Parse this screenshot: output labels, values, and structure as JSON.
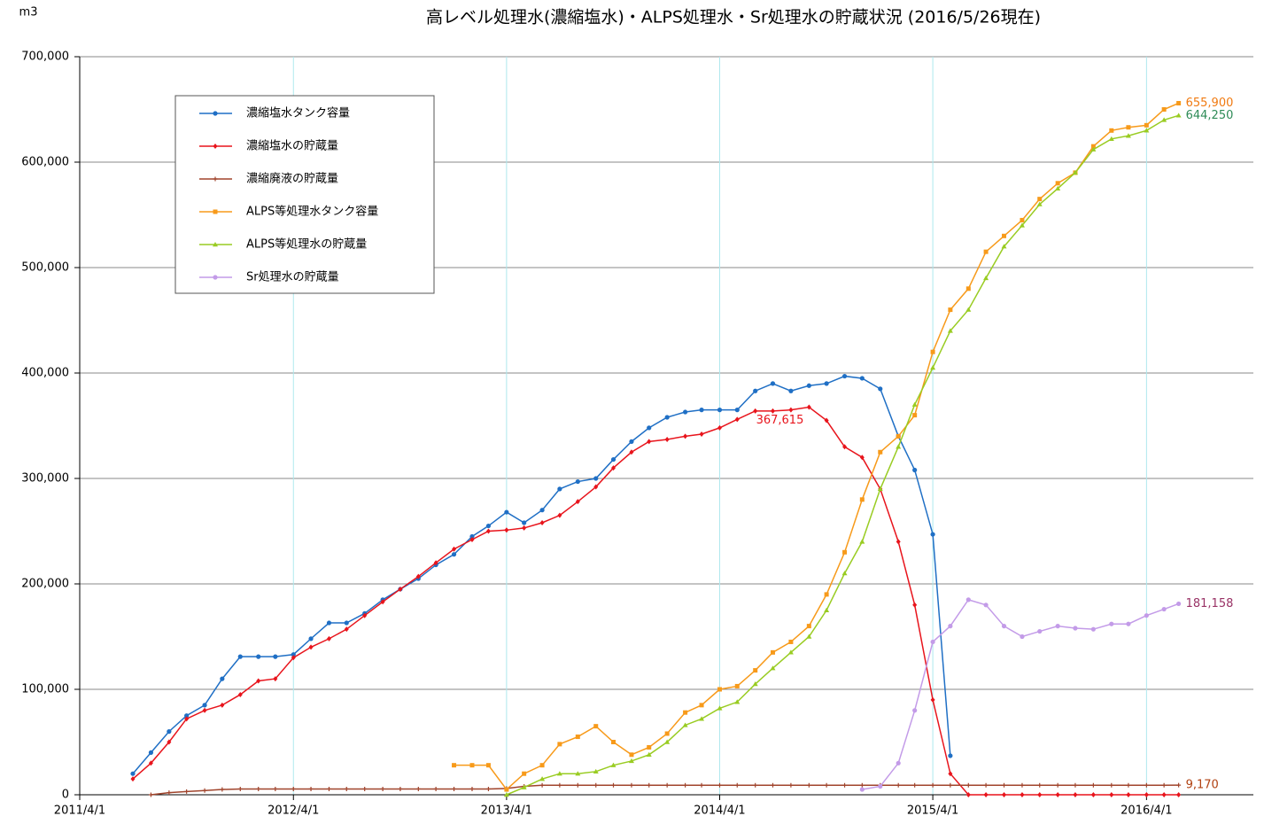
{
  "chart_data": {
    "type": "line",
    "title": "高レベル処理水(濃縮塩水)・ALPS処理水・Sr処理水の貯蔵状況 (2016/5/26現在)",
    "y_unit_label": "m3",
    "x": [
      "2011/7/1",
      "2011/8/1",
      "2011/9/1",
      "2011/10/1",
      "2011/11/1",
      "2011/12/1",
      "2012/1/1",
      "2012/2/1",
      "2012/3/1",
      "2012/4/1",
      "2012/5/1",
      "2012/6/1",
      "2012/7/1",
      "2012/8/1",
      "2012/9/1",
      "2012/10/1",
      "2012/11/1",
      "2012/12/1",
      "2013/1/1",
      "2013/2/1",
      "2013/3/1",
      "2013/4/1",
      "2013/5/1",
      "2013/6/1",
      "2013/7/1",
      "2013/8/1",
      "2013/9/1",
      "2013/10/1",
      "2013/11/1",
      "2013/12/1",
      "2014/1/1",
      "2014/2/1",
      "2014/3/1",
      "2014/4/1",
      "2014/5/1",
      "2014/6/1",
      "2014/7/1",
      "2014/8/1",
      "2014/9/1",
      "2014/10/1",
      "2014/11/1",
      "2014/12/1",
      "2015/1/1",
      "2015/2/1",
      "2015/3/1",
      "2015/4/1",
      "2015/5/1",
      "2015/6/1",
      "2015/7/1",
      "2015/8/1",
      "2015/9/1",
      "2015/10/1",
      "2015/11/1",
      "2015/12/1",
      "2016/1/1",
      "2016/2/1",
      "2016/3/1",
      "2016/4/1",
      "2016/5/1",
      "2016/5/26"
    ],
    "xlim": [
      "2011/4/1",
      "2016/10/1"
    ],
    "xticks": [
      "2011/4/1",
      "2012/4/1",
      "2013/4/1",
      "2014/4/1",
      "2015/4/1",
      "2016/4/1"
    ],
    "ylim": [
      0,
      700000
    ],
    "yticks": [
      0,
      {
        "value": 100000,
        "label": "100,000"
      },
      {
        "value": 200000,
        "label": "200,000"
      },
      {
        "value": 300000,
        "label": "300,000"
      },
      {
        "value": 400000,
        "label": "400,000"
      },
      {
        "value": 500000,
        "label": "500,000"
      },
      {
        "value": 600000,
        "label": "600,000"
      },
      {
        "value": 700000,
        "label": "700,000"
      }
    ],
    "grid": true,
    "legend": "upper left",
    "series": [
      {
        "name": "濃縮塩水タンク容量",
        "color": "#1f6fc5",
        "marker": "circle",
        "values": [
          20000,
          40000,
          60000,
          75000,
          85000,
          110000,
          131000,
          131000,
          131000,
          133000,
          148000,
          163000,
          163000,
          172000,
          185000,
          195000,
          205000,
          218000,
          228000,
          245000,
          255000,
          268000,
          258000,
          270000,
          290000,
          297000,
          300000,
          318000,
          335000,
          348000,
          358000,
          363000,
          365000,
          365000,
          365000,
          383000,
          390000,
          383000,
          388000,
          390000,
          397000,
          395000,
          385000,
          340000,
          308000,
          247000,
          37000,
          null,
          null,
          null,
          null,
          null,
          null,
          null,
          null,
          null,
          null,
          null,
          null,
          null
        ]
      },
      {
        "name": "濃縮塩水の貯蔵量",
        "color": "#e8141c",
        "marker": "diamond",
        "label_color": "#e8141c",
        "values": [
          15000,
          30000,
          50000,
          72000,
          80000,
          85000,
          95000,
          108000,
          110000,
          130000,
          140000,
          148000,
          157000,
          170000,
          183000,
          195000,
          207000,
          220000,
          233000,
          242000,
          250000,
          251000,
          253000,
          258000,
          265000,
          278000,
          292000,
          310000,
          325000,
          335000,
          337000,
          340000,
          342000,
          348000,
          356000,
          364000,
          364000,
          365000,
          367615,
          355000,
          330000,
          320000,
          290000,
          240000,
          180000,
          90000,
          20000,
          0,
          0,
          0,
          0,
          0,
          0,
          0,
          0,
          0,
          0,
          0,
          0,
          0
        ],
        "value_labels": [
          null,
          null,
          null,
          null,
          null,
          null,
          null,
          null,
          null,
          null,
          null,
          null,
          null,
          null,
          null,
          null,
          null,
          null,
          null,
          null,
          null,
          null,
          null,
          null,
          null,
          null,
          null,
          null,
          null,
          null,
          null,
          null,
          null,
          null,
          null,
          null,
          null,
          null,
          "367,615",
          null,
          null,
          null,
          null,
          null,
          null,
          null,
          null,
          null,
          null,
          null,
          null,
          null,
          null,
          null,
          null,
          null,
          null,
          null,
          null,
          null
        ]
      },
      {
        "name": "濃縮廃液の貯蔵量",
        "color": "#a0442c",
        "marker": "plus",
        "label_color": "#b04010",
        "values": [
          null,
          0,
          2000,
          3000,
          4000,
          5000,
          5500,
          5500,
          5500,
          5500,
          5500,
          5500,
          5500,
          5500,
          5500,
          5500,
          5500,
          5500,
          5500,
          5500,
          5500,
          6000,
          8000,
          9000,
          9000,
          9000,
          9000,
          9000,
          9000,
          9000,
          9000,
          9000,
          9000,
          9000,
          9000,
          9000,
          9000,
          9000,
          9000,
          9000,
          9000,
          9000,
          9000,
          9000,
          9000,
          9000,
          9000,
          9000,
          9000,
          9000,
          9000,
          9000,
          9000,
          9000,
          9000,
          9000,
          9000,
          9000,
          9000,
          9170
        ],
        "value_labels": [
          null,
          null,
          null,
          null,
          null,
          null,
          null,
          null,
          null,
          null,
          null,
          null,
          null,
          null,
          null,
          null,
          null,
          null,
          null,
          null,
          null,
          null,
          null,
          null,
          null,
          null,
          null,
          null,
          null,
          null,
          null,
          null,
          null,
          null,
          null,
          null,
          null,
          null,
          null,
          null,
          null,
          null,
          null,
          null,
          null,
          null,
          null,
          null,
          null,
          null,
          null,
          null,
          null,
          null,
          null,
          null,
          null,
          null,
          null,
          "9,170"
        ]
      },
      {
        "name": "ALPS等処理水タンク容量",
        "color": "#f79a1a",
        "marker": "square",
        "label_color": "#f07a10",
        "values": [
          null,
          null,
          null,
          null,
          null,
          null,
          null,
          null,
          null,
          null,
          null,
          null,
          null,
          null,
          null,
          null,
          null,
          null,
          28000,
          28000,
          28000,
          5000,
          20000,
          28000,
          48000,
          55000,
          65000,
          50000,
          38000,
          45000,
          58000,
          78000,
          85000,
          100000,
          103000,
          118000,
          135000,
          145000,
          160000,
          190000,
          230000,
          280000,
          325000,
          340000,
          360000,
          420000,
          460000,
          480000,
          515000,
          530000,
          545000,
          565000,
          580000,
          590000,
          615000,
          630000,
          633000,
          635000,
          650000,
          655900
        ],
        "value_labels": [
          null,
          null,
          null,
          null,
          null,
          null,
          null,
          null,
          null,
          null,
          null,
          null,
          null,
          null,
          null,
          null,
          null,
          null,
          null,
          null,
          null,
          null,
          null,
          null,
          null,
          null,
          null,
          null,
          null,
          null,
          null,
          null,
          null,
          null,
          null,
          null,
          null,
          null,
          null,
          null,
          null,
          null,
          null,
          null,
          null,
          null,
          null,
          null,
          null,
          null,
          null,
          null,
          null,
          null,
          null,
          null,
          null,
          null,
          null,
          "655,900"
        ]
      },
      {
        "name": "ALPS等処理水の貯蔵量",
        "color": "#99cc22",
        "marker": "triangle",
        "label_color": "#2e8b57",
        "values": [
          null,
          null,
          null,
          null,
          null,
          null,
          null,
          null,
          null,
          null,
          null,
          null,
          null,
          null,
          null,
          null,
          null,
          null,
          null,
          null,
          null,
          0,
          7000,
          15000,
          20000,
          20000,
          22000,
          28000,
          32000,
          38000,
          50000,
          66000,
          72000,
          82000,
          88000,
          105000,
          120000,
          135000,
          150000,
          175000,
          210000,
          240000,
          290000,
          330000,
          370000,
          405000,
          440000,
          460000,
          490000,
          520000,
          540000,
          560000,
          575000,
          590000,
          612000,
          622000,
          625000,
          630000,
          640000,
          644250
        ],
        "value_labels": [
          null,
          null,
          null,
          null,
          null,
          null,
          null,
          null,
          null,
          null,
          null,
          null,
          null,
          null,
          null,
          null,
          null,
          null,
          null,
          null,
          null,
          null,
          null,
          null,
          null,
          null,
          null,
          null,
          null,
          null,
          null,
          null,
          null,
          null,
          null,
          null,
          null,
          null,
          null,
          null,
          null,
          null,
          null,
          null,
          null,
          null,
          null,
          null,
          null,
          null,
          null,
          null,
          null,
          null,
          null,
          null,
          null,
          null,
          null,
          "644,250"
        ]
      },
      {
        "name": "Sr処理水の貯蔵量",
        "color": "#c39be8",
        "marker": "circle",
        "label_color": "#993366",
        "values": [
          null,
          null,
          null,
          null,
          null,
          null,
          null,
          null,
          null,
          null,
          null,
          null,
          null,
          null,
          null,
          null,
          null,
          null,
          null,
          null,
          null,
          null,
          null,
          null,
          null,
          null,
          null,
          null,
          null,
          null,
          null,
          null,
          null,
          null,
          null,
          null,
          null,
          null,
          null,
          null,
          null,
          5000,
          8000,
          30000,
          80000,
          145000,
          160000,
          185000,
          180000,
          160000,
          150000,
          155000,
          160000,
          158000,
          157000,
          162000,
          162000,
          170000,
          176000,
          181158
        ],
        "value_labels": [
          null,
          null,
          null,
          null,
          null,
          null,
          null,
          null,
          null,
          null,
          null,
          null,
          null,
          null,
          null,
          null,
          null,
          null,
          null,
          null,
          null,
          null,
          null,
          null,
          null,
          null,
          null,
          null,
          null,
          null,
          null,
          null,
          null,
          null,
          null,
          null,
          null,
          null,
          null,
          null,
          null,
          null,
          null,
          null,
          null,
          null,
          null,
          null,
          null,
          null,
          null,
          null,
          null,
          null,
          null,
          null,
          null,
          null,
          null,
          "181,158"
        ]
      }
    ]
  }
}
